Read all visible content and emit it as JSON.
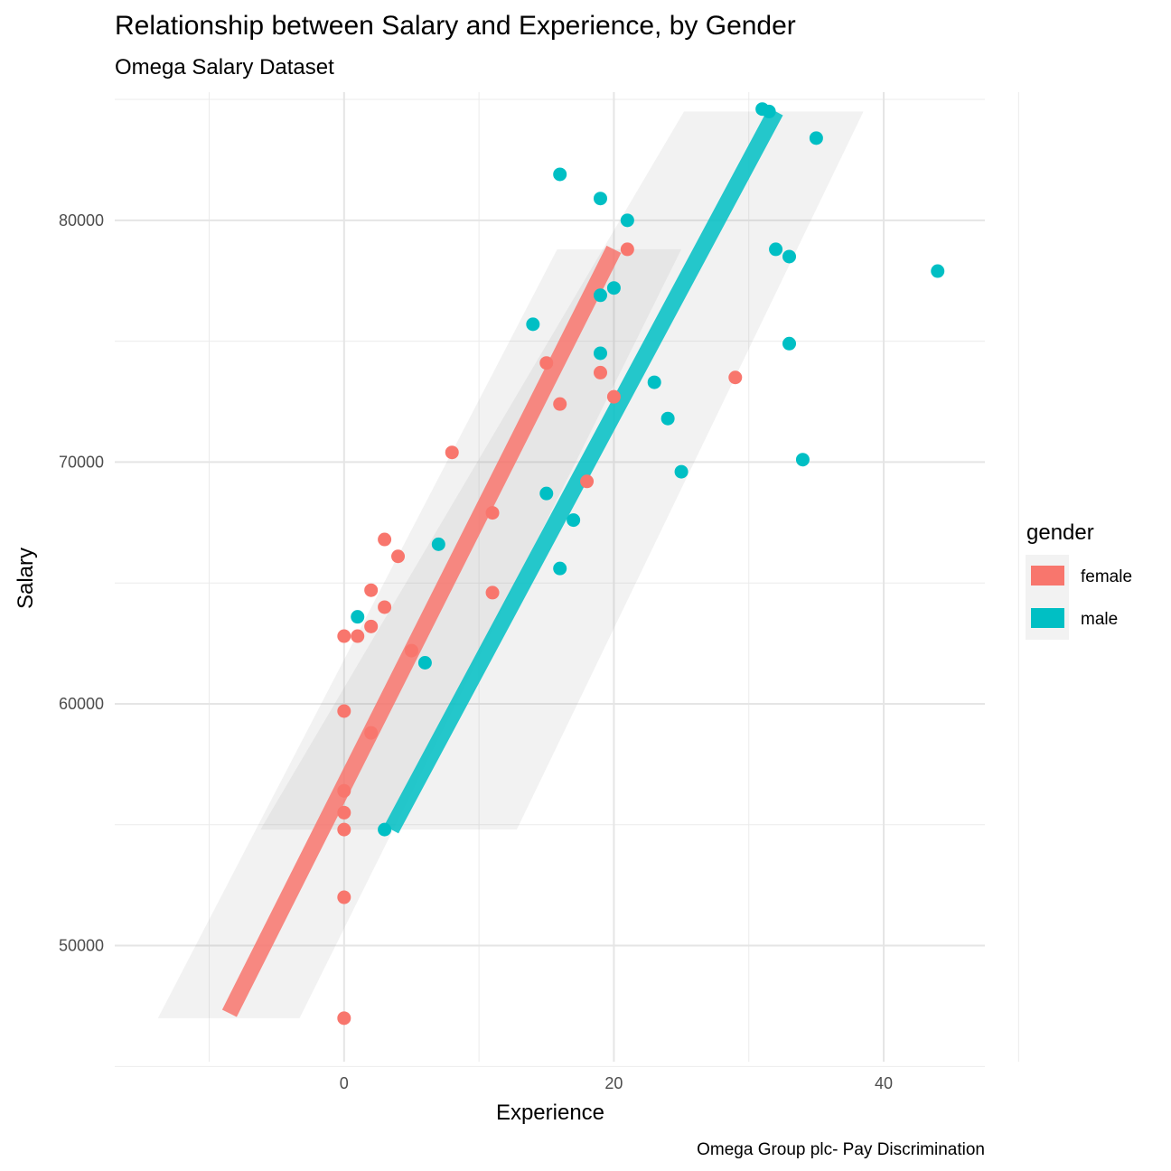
{
  "chart_data": {
    "type": "scatter",
    "title": "Relationship between Salary and Experience, by Gender",
    "subtitle": "Omega Salary Dataset",
    "xlabel": "Experience",
    "ylabel": "Salary",
    "caption": "Omega Group plc- Pay Discrimination",
    "xlim": [
      -17,
      47.5
    ],
    "ylim": [
      45200,
      85300
    ],
    "x_ticks": [
      0,
      20,
      40
    ],
    "x_tick_labels": [
      "0",
      "20",
      "40"
    ],
    "y_ticks": [
      50000,
      60000,
      70000,
      80000
    ],
    "y_tick_labels": [
      "50000",
      "60000",
      "70000",
      "80000"
    ],
    "grid": true,
    "legend": {
      "title": "gender",
      "position": "right"
    },
    "series": [
      {
        "name": "female",
        "color": "#F8766D",
        "points": [
          [
            0,
            47000
          ],
          [
            0,
            52000
          ],
          [
            0,
            54800
          ],
          [
            0,
            55500
          ],
          [
            0,
            56400
          ],
          [
            0,
            59700
          ],
          [
            0,
            62800
          ],
          [
            1,
            62800
          ],
          [
            2,
            58800
          ],
          [
            2,
            63200
          ],
          [
            2,
            64700
          ],
          [
            3,
            64000
          ],
          [
            3,
            66800
          ],
          [
            4,
            66100
          ],
          [
            5,
            62200
          ],
          [
            8,
            70400
          ],
          [
            11,
            64600
          ],
          [
            11,
            67900
          ],
          [
            15,
            74100
          ],
          [
            16,
            72400
          ],
          [
            18,
            69200
          ],
          [
            19,
            73700
          ],
          [
            20,
            72700
          ],
          [
            21,
            78800
          ],
          [
            29,
            73500
          ]
        ],
        "fit_line": [
          [
            -8.5,
            47200
          ],
          [
            20,
            78800
          ]
        ],
        "ribbon": {
          "upper": [
            [
              -3.3,
              47000
            ],
            [
              25,
              78800
            ]
          ],
          "lower": [
            [
              -13.8,
              47000
            ],
            [
              15.8,
              78800
            ]
          ]
        }
      },
      {
        "name": "male",
        "color": "#00BFC4",
        "points": [
          [
            1,
            63600
          ],
          [
            3,
            54800
          ],
          [
            6,
            61700
          ],
          [
            7,
            66600
          ],
          [
            14,
            75700
          ],
          [
            15,
            68700
          ],
          [
            16,
            65600
          ],
          [
            16,
            81900
          ],
          [
            17,
            67600
          ],
          [
            19,
            74500
          ],
          [
            19,
            76900
          ],
          [
            19,
            80900
          ],
          [
            20,
            77200
          ],
          [
            21,
            80000
          ],
          [
            23,
            73300
          ],
          [
            24,
            71800
          ],
          [
            25,
            69600
          ],
          [
            31,
            84600
          ],
          [
            31.5,
            84500
          ],
          [
            32,
            78800
          ],
          [
            33,
            74900
          ],
          [
            33,
            78500
          ],
          [
            34,
            70100
          ],
          [
            35,
            83400
          ],
          [
            44,
            77900
          ]
        ],
        "fit_line": [
          [
            3.5,
            54800
          ],
          [
            32,
            84500
          ]
        ],
        "ribbon": {
          "upper": [
            [
              12.8,
              54800
            ],
            [
              38.5,
              84500
            ]
          ],
          "lower": [
            [
              -6.2,
              54800
            ],
            [
              25.2,
              84500
            ]
          ]
        }
      }
    ]
  }
}
